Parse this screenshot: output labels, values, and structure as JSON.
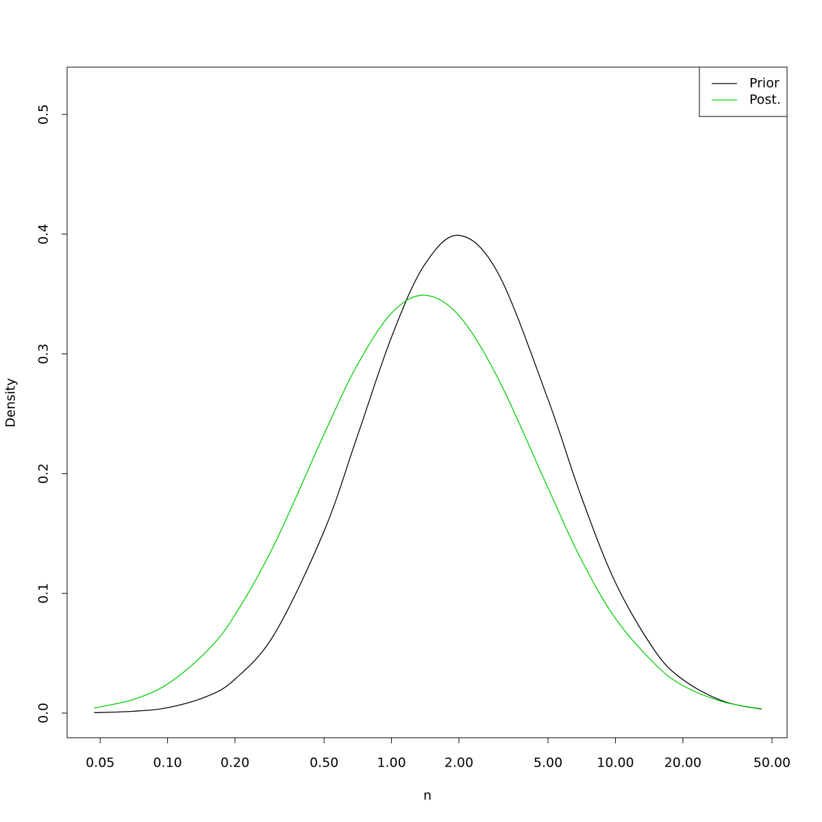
{
  "chart_data": {
    "type": "line",
    "x_label": "n",
    "y_label": "Density",
    "log_x": true,
    "x": [
      0.047,
      0.07,
      0.1,
      0.15,
      0.2,
      0.3,
      0.5,
      0.7,
      1,
      1.4,
      2,
      3,
      5,
      7,
      10,
      15,
      20,
      30,
      45
    ],
    "series": [
      {
        "name": "Prior",
        "color": "#000000",
        "values": [
          0.00035,
          0.0015,
          0.0045,
          0.014,
          0.0283,
          0.066,
          0.152,
          0.23,
          0.314,
          0.374,
          0.399,
          0.367,
          0.262,
          0.182,
          0.109,
          0.052,
          0.028,
          0.0102,
          0.0032
        ]
      },
      {
        "name": "Post.",
        "color": "#00cd00",
        "values": [
          0.0042,
          0.0113,
          0.0243,
          0.0518,
          0.082,
          0.141,
          0.233,
          0.29,
          0.334,
          0.349,
          0.332,
          0.279,
          0.188,
          0.129,
          0.079,
          0.041,
          0.023,
          0.0096,
          0.0035
        ]
      }
    ],
    "xlim": [
      0.0356,
      58.4
    ],
    "ylim": [
      -0.0206,
      0.5395
    ],
    "xticks": [
      0.05,
      {
        "value": 0.1,
        "label": "0.10"
      },
      {
        "value": 0.2,
        "label": "0.20"
      },
      {
        "value": 0.5,
        "label": "0.50"
      },
      {
        "value": 1,
        "label": "1.00"
      },
      {
        "value": 2,
        "label": "2.00"
      },
      {
        "value": 5,
        "label": "5.00"
      },
      {
        "value": 10,
        "label": "10.00"
      },
      {
        "value": 20,
        "label": "20.00"
      },
      {
        "value": 50,
        "label": "50.00"
      }
    ],
    "yticks": [
      {
        "value": 0,
        "label": "0.0"
      },
      0.1,
      0.2,
      0.3,
      0.4,
      0.5
    ],
    "grid": false,
    "legend_position": "topright"
  }
}
